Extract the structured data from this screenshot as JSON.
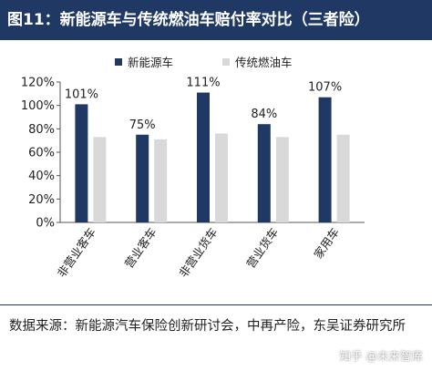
{
  "figure": {
    "title": "图11：新能源车与传统燃油车赔付率对比（三者险）",
    "source": "数据来源：新能源汽车保险创新研讨会，中再产险，东吴证券研究所",
    "watermark": "知乎 @未来智库"
  },
  "colors": {
    "header_bg": "#1f3864",
    "nev": "#1f3864",
    "ice": "#d9d9d9"
  },
  "chart_data": {
    "type": "bar",
    "categories": [
      "非营业客车",
      "营业客车",
      "非营业货车",
      "营业货车",
      "家用车"
    ],
    "series": [
      {
        "name": "新能源车",
        "values": [
          101,
          75,
          111,
          84,
          107
        ],
        "labels": [
          "101%",
          "75%",
          "111%",
          "84%",
          "107%"
        ]
      },
      {
        "name": "传统燃油车",
        "values": [
          73,
          71,
          76,
          73,
          75
        ],
        "labels": []
      }
    ],
    "yticks": [
      "120%",
      "100%",
      "80%",
      "60%",
      "40%",
      "20%",
      "0%"
    ],
    "ylim": [
      0,
      120
    ],
    "yunit": "%",
    "legend_position": "top",
    "grid": false
  }
}
